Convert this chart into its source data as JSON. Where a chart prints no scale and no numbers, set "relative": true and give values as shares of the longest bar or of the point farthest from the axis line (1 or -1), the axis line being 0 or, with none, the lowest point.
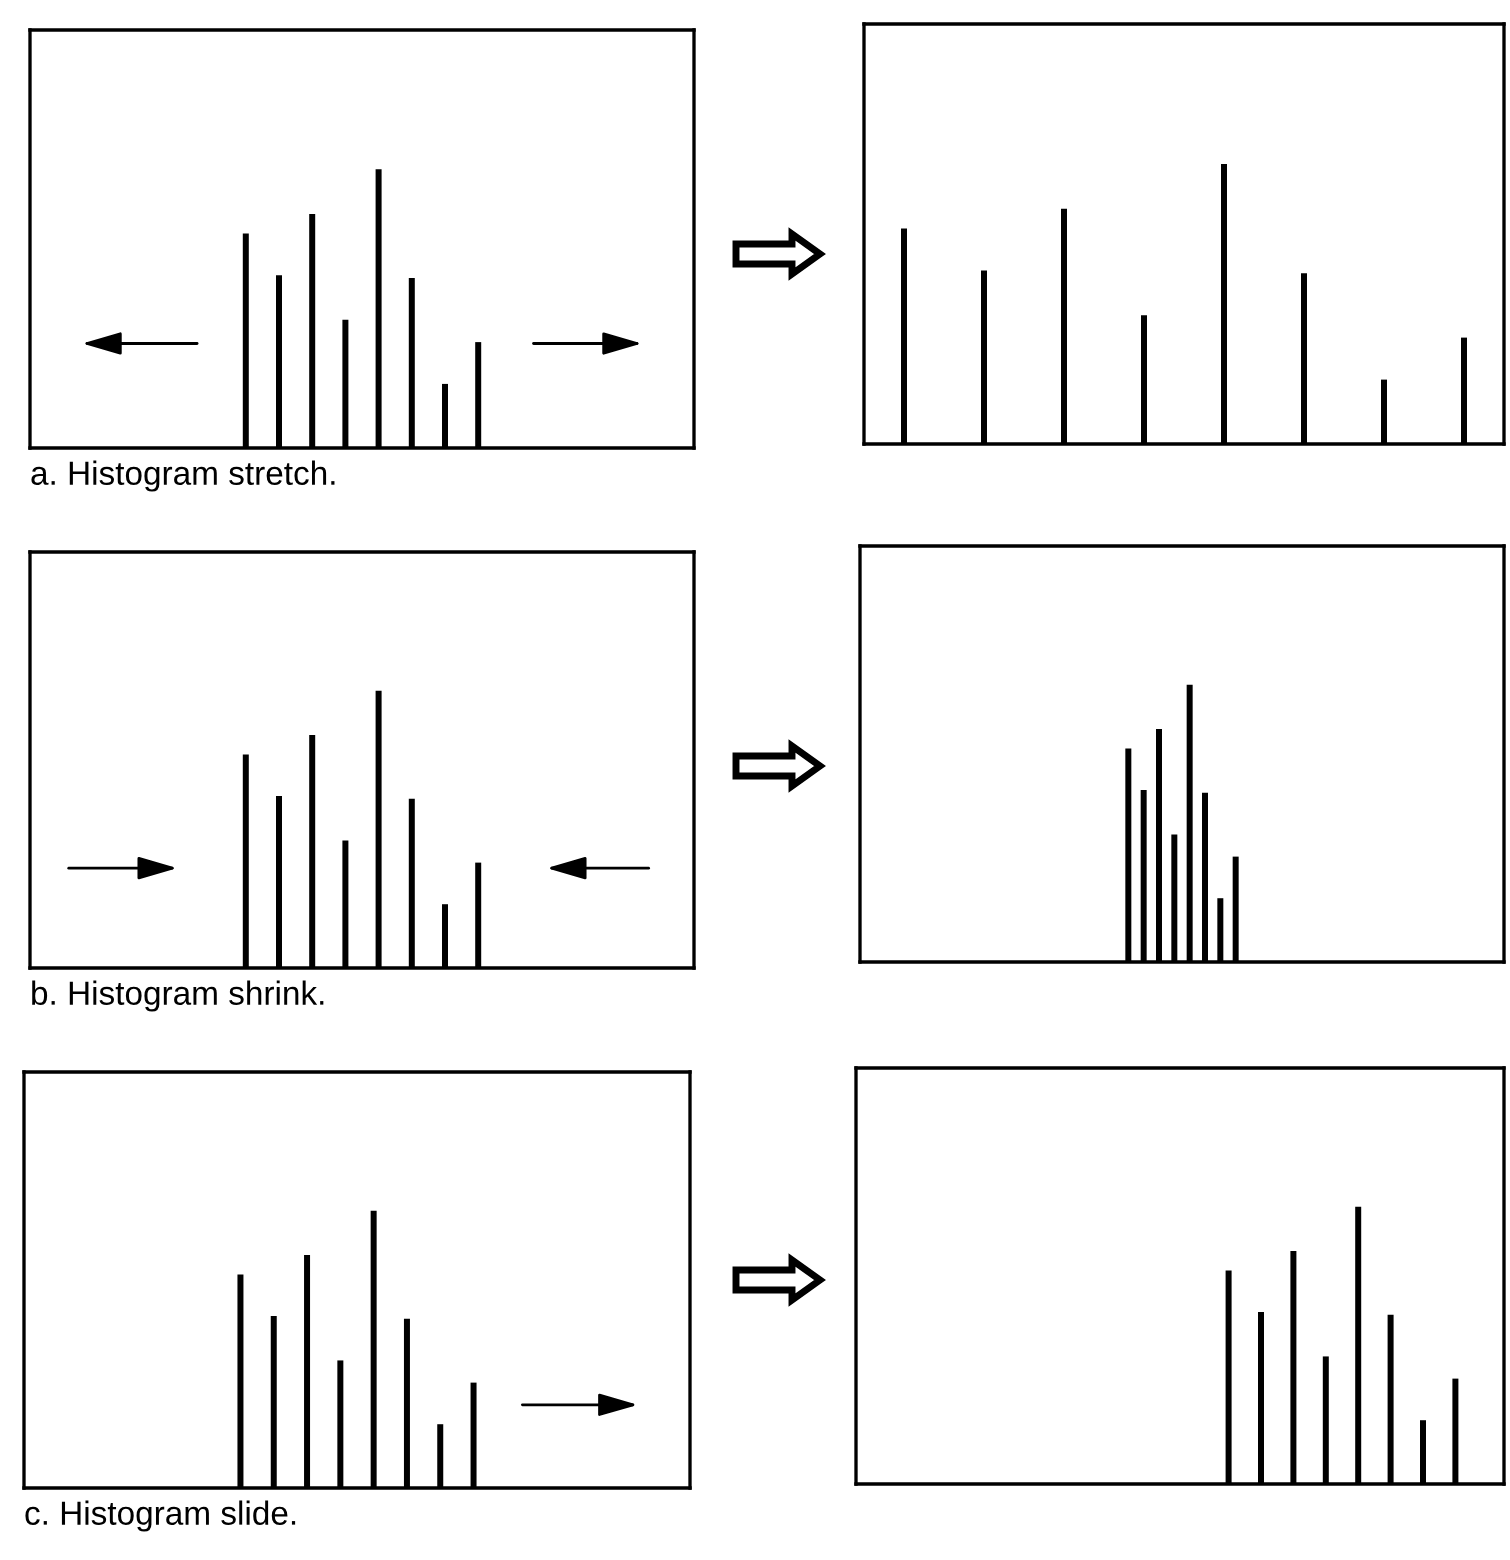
{
  "chart_data": [
    {
      "type": "bar",
      "relative": true,
      "color": "#000000",
      "annotations": [
        "a. Histogram stretch."
      ],
      "categories": [
        null,
        null,
        null,
        null,
        null,
        null,
        null,
        null
      ],
      "values": [
        0.77,
        0.62,
        0.84,
        0.46,
        1,
        0.61,
        0.23,
        0.38
      ]
    },
    {
      "type": "bar",
      "relative": true,
      "color": "#000000",
      "categories": [
        null,
        null,
        null,
        null,
        null,
        null,
        null,
        null
      ],
      "values": [
        0.77,
        0.62,
        0.84,
        0.46,
        1,
        0.61,
        0.23,
        0.38
      ]
    },
    {
      "type": "bar",
      "relative": true,
      "color": "#000000",
      "annotations": [
        "b. Histogram shrink."
      ],
      "categories": [
        null,
        null,
        null,
        null,
        null,
        null,
        null,
        null
      ],
      "values": [
        0.77,
        0.62,
        0.84,
        0.46,
        1,
        0.61,
        0.23,
        0.38
      ]
    },
    {
      "type": "bar",
      "relative": true,
      "color": "#000000",
      "categories": [
        null,
        null,
        null,
        null,
        null,
        null,
        null,
        null
      ],
      "values": [
        0.77,
        0.62,
        0.84,
        0.46,
        1,
        0.61,
        0.23,
        0.38
      ]
    },
    {
      "type": "bar",
      "relative": true,
      "color": "#000000",
      "annotations": [
        "c. Histogram slide."
      ],
      "categories": [
        null,
        null,
        null,
        null,
        null,
        null,
        null,
        null
      ],
      "values": [
        0.77,
        0.62,
        0.84,
        0.46,
        1,
        0.61,
        0.23,
        0.38
      ]
    },
    {
      "type": "bar",
      "relative": true,
      "color": "#000000",
      "categories": [
        null,
        null,
        null,
        null,
        null,
        null,
        null,
        null
      ],
      "values": [
        0.77,
        0.62,
        0.84,
        0.46,
        1,
        0.61,
        0.23,
        0.38
      ]
    }
  ]
}
